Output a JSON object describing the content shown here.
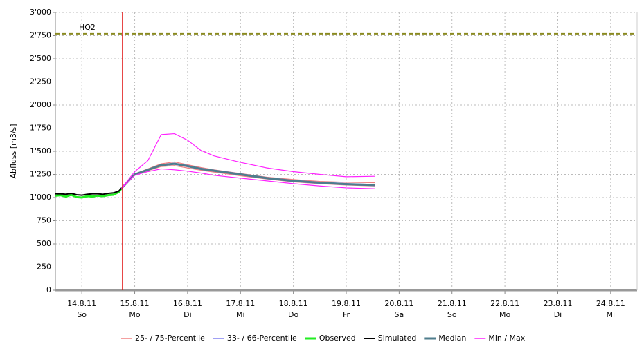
{
  "chart_data": {
    "type": "line",
    "y_label": "Abfluss [m3/s]",
    "xlim": [
      0,
      11
    ],
    "xticks": [
      {
        "value": 0.5,
        "label": "14.8.11"
      },
      {
        "value": 1.5,
        "label": "15.8.11"
      },
      {
        "value": 2.5,
        "label": "16.8.11"
      },
      {
        "value": 3.5,
        "label": "17.8.11"
      },
      {
        "value": 4.5,
        "label": "18.8.11"
      },
      {
        "value": 5.5,
        "label": "19.8.11"
      },
      {
        "value": 6.5,
        "label": "20.8.11"
      },
      {
        "value": 7.5,
        "label": "21.8.11"
      },
      {
        "value": 8.5,
        "label": "22.8.11"
      },
      {
        "value": 9.5,
        "label": "23.8.11"
      },
      {
        "value": 10.5,
        "label": "24.8.11"
      }
    ],
    "x_tick_weekdays": [
      "So",
      "Mo",
      "Di",
      "Mi",
      "Do",
      "Fr",
      "Sa",
      "So",
      "Mo",
      "Di",
      "Mi"
    ],
    "ylim": [
      0,
      3000
    ],
    "yticks": [
      0,
      250,
      500,
      750,
      {
        "value": 1000,
        "label": "1'000"
      },
      {
        "value": 1250,
        "label": "1'250"
      },
      {
        "value": 1500,
        "label": "1'500"
      },
      {
        "value": 1750,
        "label": "1'750"
      },
      {
        "value": 2000,
        "label": "2'000"
      },
      {
        "value": 2250,
        "label": "2'250"
      },
      {
        "value": 2500,
        "label": "2'500"
      },
      {
        "value": 2750,
        "label": "2'750"
      },
      {
        "value": 3000,
        "label": "3'000"
      }
    ],
    "grid": true,
    "threshold": {
      "label": "HQ2",
      "value": 2770,
      "color": "#8a8a20"
    },
    "forecast_start": 1.27,
    "series": [
      {
        "name": "25- / 75-Percentile",
        "color": "#f08080",
        "x": [
          1.25,
          1.5,
          1.75,
          2,
          2.25,
          2.5,
          2.75,
          3,
          3.5,
          4,
          4.5,
          5,
          5.5,
          6.05
        ],
        "upper": [
          1100,
          1255,
          1310,
          1365,
          1385,
          1355,
          1325,
          1300,
          1260,
          1220,
          1195,
          1175,
          1165,
          1160
        ],
        "lower": [
          1100,
          1245,
          1290,
          1335,
          1345,
          1320,
          1295,
          1275,
          1235,
          1200,
          1170,
          1150,
          1135,
          1125
        ]
      },
      {
        "name": "33- / 66-Percentile",
        "color": "#8080f0",
        "x": [
          1.25,
          1.5,
          1.75,
          2,
          2.25,
          2.5,
          2.75,
          3,
          3.5,
          4,
          4.5,
          5,
          5.5,
          6.05
        ],
        "upper": [
          1100,
          1252,
          1305,
          1357,
          1372,
          1347,
          1317,
          1297,
          1257,
          1217,
          1187,
          1167,
          1152,
          1142
        ],
        "lower": [
          1100,
          1248,
          1295,
          1343,
          1358,
          1333,
          1303,
          1283,
          1243,
          1203,
          1173,
          1153,
          1138,
          1128
        ]
      },
      {
        "name": "Observed",
        "color": "#22ee22",
        "width": 3,
        "x": [
          0,
          0.1,
          0.2,
          0.3,
          0.4,
          0.5,
          0.6,
          0.7,
          0.8,
          0.9,
          1,
          1.1,
          1.2,
          1.25
        ],
        "values": [
          1020,
          1025,
          1010,
          1030,
          1005,
          1000,
          1015,
          1010,
          1020,
          1015,
          1025,
          1030,
          1060,
          1100
        ]
      },
      {
        "name": "Simulated",
        "color": "#000000",
        "width": 2,
        "x": [
          0,
          0.1,
          0.2,
          0.3,
          0.4,
          0.5,
          0.6,
          0.7,
          0.8,
          0.9,
          1,
          1.1,
          1.2,
          1.25
        ],
        "values": [
          1040,
          1040,
          1035,
          1045,
          1030,
          1025,
          1035,
          1040,
          1040,
          1035,
          1045,
          1050,
          1070,
          1100
        ]
      },
      {
        "name": "Median",
        "color": "#4f7d8c",
        "width": 3,
        "x": [
          1.25,
          1.5,
          1.75,
          2,
          2.25,
          2.5,
          2.75,
          3,
          3.5,
          4,
          4.5,
          5,
          5.5,
          6.05
        ],
        "values": [
          1100,
          1250,
          1300,
          1350,
          1365,
          1340,
          1310,
          1290,
          1250,
          1210,
          1180,
          1160,
          1145,
          1135
        ]
      },
      {
        "name": "Min / Max",
        "color": "#ff22ff",
        "x": [
          1.25,
          1.5,
          1.75,
          2,
          2.25,
          2.5,
          2.75,
          3,
          3.5,
          4,
          4.5,
          5,
          5.5,
          6.05
        ],
        "upper": [
          1100,
          1280,
          1400,
          1680,
          1690,
          1620,
          1510,
          1450,
          1380,
          1320,
          1280,
          1250,
          1225,
          1230
        ],
        "lower": [
          1100,
          1240,
          1280,
          1310,
          1300,
          1285,
          1265,
          1240,
          1210,
          1180,
          1150,
          1125,
          1105,
          1095
        ]
      }
    ]
  }
}
